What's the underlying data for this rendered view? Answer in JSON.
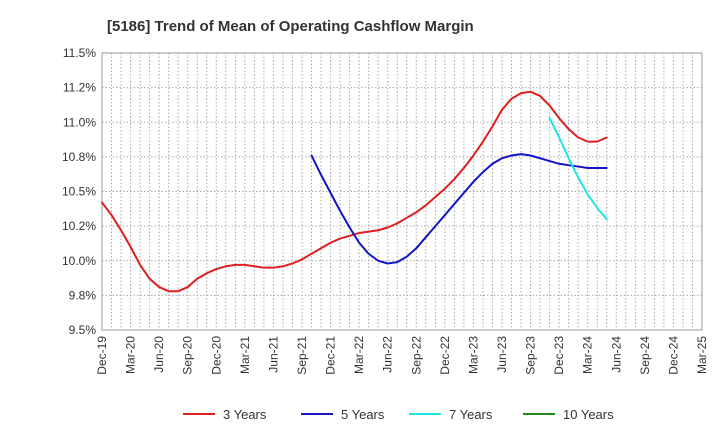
{
  "chart_data": {
    "type": "line",
    "title": "[5186]  Trend of Mean of Operating Cashflow Margin",
    "xlabel": "",
    "ylabel": "",
    "ylim": [
      9.5,
      11.5
    ],
    "yticks": [
      9.5,
      9.75,
      10.0,
      10.25,
      10.5,
      10.75,
      11.0,
      11.25,
      11.5
    ],
    "ytick_labels": [
      "9.5%",
      "9.8%",
      "10.0%",
      "10.2%",
      "10.5%",
      "10.8%",
      "11.0%",
      "11.2%",
      "11.5%"
    ],
    "x_range": [
      "2019-12",
      "2025-03"
    ],
    "xtick_labels": [
      "Dec-19",
      "Mar-20",
      "Jun-20",
      "Sep-20",
      "Dec-20",
      "Mar-21",
      "Jun-21",
      "Sep-21",
      "Dec-21",
      "Mar-22",
      "Jun-22",
      "Sep-22",
      "Dec-22",
      "Mar-23",
      "Jun-23",
      "Sep-23",
      "Dec-23",
      "Mar-24",
      "Jun-24",
      "Sep-24",
      "Dec-24",
      "Mar-25"
    ],
    "grid": true,
    "legend_position": "bottom",
    "series": [
      {
        "name": "3 Years",
        "color": "#dd1f1f",
        "points": [
          [
            "2019-12",
            10.42
          ],
          [
            "2020-01",
            10.33
          ],
          [
            "2020-02",
            10.22
          ],
          [
            "2020-03",
            10.1
          ],
          [
            "2020-04",
            9.97
          ],
          [
            "2020-05",
            9.87
          ],
          [
            "2020-06",
            9.81
          ],
          [
            "2020-07",
            9.78
          ],
          [
            "2020-08",
            9.78
          ],
          [
            "2020-09",
            9.81
          ],
          [
            "2020-10",
            9.87
          ],
          [
            "2020-11",
            9.91
          ],
          [
            "2020-12",
            9.94
          ],
          [
            "2021-01",
            9.96
          ],
          [
            "2021-02",
            9.97
          ],
          [
            "2021-03",
            9.97
          ],
          [
            "2021-04",
            9.96
          ],
          [
            "2021-05",
            9.95
          ],
          [
            "2021-06",
            9.95
          ],
          [
            "2021-07",
            9.96
          ],
          [
            "2021-08",
            9.98
          ],
          [
            "2021-09",
            10.01
          ],
          [
            "2021-10",
            10.05
          ],
          [
            "2021-11",
            10.09
          ],
          [
            "2021-12",
            10.13
          ],
          [
            "2022-01",
            10.16
          ],
          [
            "2022-02",
            10.18
          ],
          [
            "2022-03",
            10.2
          ],
          [
            "2022-04",
            10.21
          ],
          [
            "2022-05",
            10.22
          ],
          [
            "2022-06",
            10.24
          ],
          [
            "2022-07",
            10.27
          ],
          [
            "2022-08",
            10.31
          ],
          [
            "2022-09",
            10.35
          ],
          [
            "2022-10",
            10.4
          ],
          [
            "2022-11",
            10.46
          ],
          [
            "2022-12",
            10.52
          ],
          [
            "2023-01",
            10.59
          ],
          [
            "2023-02",
            10.67
          ],
          [
            "2023-03",
            10.76
          ],
          [
            "2023-04",
            10.86
          ],
          [
            "2023-05",
            10.97
          ],
          [
            "2023-06",
            11.09
          ],
          [
            "2023-07",
            11.17
          ],
          [
            "2023-08",
            11.21
          ],
          [
            "2023-09",
            11.22
          ],
          [
            "2023-10",
            11.19
          ],
          [
            "2023-11",
            11.12
          ],
          [
            "2023-12",
            11.03
          ],
          [
            "2024-01",
            10.95
          ],
          [
            "2024-02",
            10.89
          ],
          [
            "2024-03",
            10.86
          ],
          [
            "2024-04",
            10.86
          ],
          [
            "2024-05",
            10.89
          ]
        ]
      },
      {
        "name": "5 Years",
        "color": "#1515c8",
        "points": [
          [
            "2021-10",
            10.76
          ],
          [
            "2021-11",
            10.62
          ],
          [
            "2021-12",
            10.49
          ],
          [
            "2022-01",
            10.36
          ],
          [
            "2022-02",
            10.24
          ],
          [
            "2022-03",
            10.13
          ],
          [
            "2022-04",
            10.05
          ],
          [
            "2022-05",
            10.0
          ],
          [
            "2022-06",
            9.98
          ],
          [
            "2022-07",
            9.99
          ],
          [
            "2022-08",
            10.03
          ],
          [
            "2022-09",
            10.09
          ],
          [
            "2022-10",
            10.17
          ],
          [
            "2022-11",
            10.25
          ],
          [
            "2022-12",
            10.33
          ],
          [
            "2023-01",
            10.41
          ],
          [
            "2023-02",
            10.49
          ],
          [
            "2023-03",
            10.57
          ],
          [
            "2023-04",
            10.64
          ],
          [
            "2023-05",
            10.7
          ],
          [
            "2023-06",
            10.74
          ],
          [
            "2023-07",
            10.76
          ],
          [
            "2023-08",
            10.77
          ],
          [
            "2023-09",
            10.76
          ],
          [
            "2023-10",
            10.74
          ],
          [
            "2023-11",
            10.72
          ],
          [
            "2023-12",
            10.7
          ],
          [
            "2024-01",
            10.69
          ],
          [
            "2024-02",
            10.68
          ],
          [
            "2024-03",
            10.67
          ],
          [
            "2024-04",
            10.67
          ],
          [
            "2024-05",
            10.67
          ]
        ]
      },
      {
        "name": "7 Years",
        "color": "#1fe6e6",
        "points": [
          [
            "2023-11",
            11.03
          ],
          [
            "2023-12",
            10.89
          ],
          [
            "2024-01",
            10.74
          ],
          [
            "2024-02",
            10.6
          ],
          [
            "2024-03",
            10.48
          ],
          [
            "2024-04",
            10.38
          ],
          [
            "2024-05",
            10.3
          ]
        ]
      },
      {
        "name": "10 Years",
        "color": "#1e8a1e",
        "points": []
      }
    ]
  }
}
